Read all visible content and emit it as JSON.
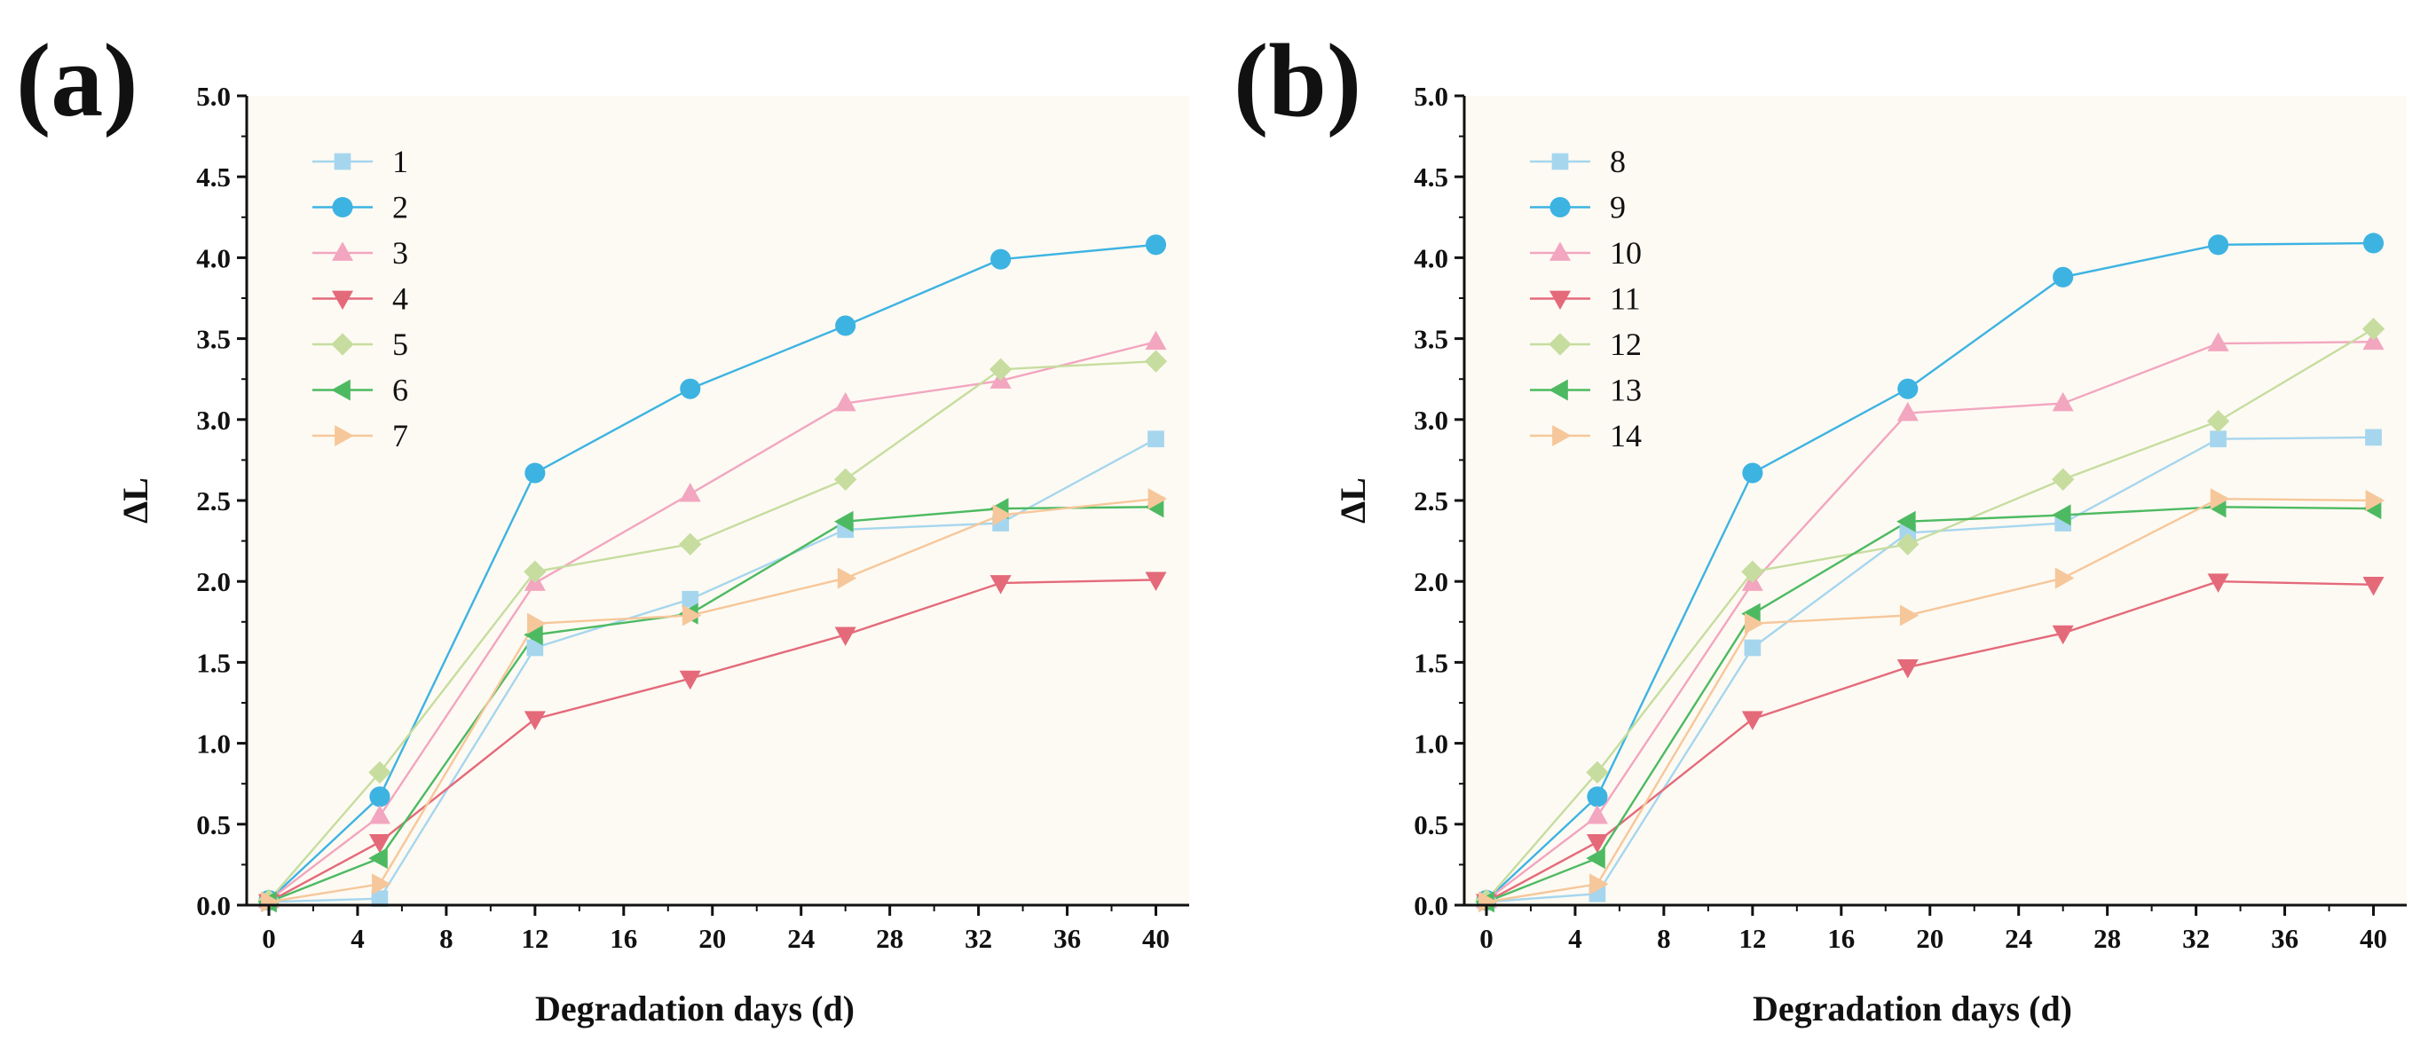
{
  "colors": {
    "plot_bg": "#fdfaf3",
    "axis": "#111111",
    "series": [
      "#a6d6ee",
      "#3db3e2",
      "#f2a6c0",
      "#e46a7a",
      "#c6dd9f",
      "#4dba62",
      "#f6c79a"
    ]
  },
  "chart_data": [
    {
      "type": "line",
      "panel_label": "(a)",
      "xlabel": "Degradation days (d)",
      "ylabel": "ΔL",
      "xlim": [
        -1,
        41.5
      ],
      "ylim": [
        0,
        5.0
      ],
      "xticks": [
        "0",
        "4",
        "8",
        "12",
        "16",
        "20",
        "24",
        "28",
        "32",
        "36",
        "40"
      ],
      "yticks": [
        "0.0",
        "0.5",
        "1.0",
        "1.5",
        "2.0",
        "2.5",
        "3.0",
        "3.5",
        "4.0",
        "4.5",
        "5.0"
      ],
      "legend_position": "top-left",
      "x": [
        0,
        5,
        12,
        19,
        26,
        33,
        40
      ],
      "series": [
        {
          "name": "1",
          "marker": "square",
          "values": [
            0.02,
            0.04,
            1.59,
            1.89,
            2.32,
            2.36,
            2.88
          ]
        },
        {
          "name": "2",
          "marker": "circle",
          "values": [
            0.03,
            0.67,
            2.67,
            3.19,
            3.58,
            3.99,
            4.08
          ]
        },
        {
          "name": "3",
          "marker": "triangle-up",
          "values": [
            0.03,
            0.55,
            1.99,
            2.54,
            3.1,
            3.24,
            3.48
          ]
        },
        {
          "name": "4",
          "marker": "triangle-down",
          "values": [
            0.02,
            0.39,
            1.15,
            1.4,
            1.67,
            1.99,
            2.01
          ]
        },
        {
          "name": "5",
          "marker": "diamond",
          "values": [
            0.03,
            0.82,
            2.06,
            2.23,
            2.63,
            3.31,
            3.36
          ]
        },
        {
          "name": "6",
          "marker": "triangle-left",
          "values": [
            0.02,
            0.29,
            1.67,
            1.8,
            2.37,
            2.45,
            2.46
          ]
        },
        {
          "name": "7",
          "marker": "triangle-right",
          "values": [
            0.02,
            0.13,
            1.74,
            1.79,
            2.02,
            2.41,
            2.51
          ]
        }
      ]
    },
    {
      "type": "line",
      "panel_label": "(b)",
      "xlabel": "Degradation days (d)",
      "ylabel": "ΔL",
      "xlim": [
        -1,
        41.5
      ],
      "ylim": [
        0,
        5.0
      ],
      "xticks": [
        "0",
        "4",
        "8",
        "12",
        "16",
        "20",
        "24",
        "28",
        "32",
        "36",
        "40"
      ],
      "yticks": [
        "0.0",
        "0.5",
        "1.0",
        "1.5",
        "2.0",
        "2.5",
        "3.0",
        "3.5",
        "4.0",
        "4.5",
        "5.0"
      ],
      "legend_position": "top-left",
      "x": [
        0,
        5,
        12,
        19,
        26,
        33,
        40
      ],
      "series": [
        {
          "name": "8",
          "marker": "square",
          "values": [
            0.02,
            0.07,
            1.59,
            2.3,
            2.36,
            2.88,
            2.89
          ]
        },
        {
          "name": "9",
          "marker": "circle",
          "values": [
            0.03,
            0.67,
            2.67,
            3.19,
            3.88,
            4.08,
            4.09
          ]
        },
        {
          "name": "10",
          "marker": "triangle-up",
          "values": [
            0.03,
            0.55,
            1.99,
            3.04,
            3.1,
            3.47,
            3.48
          ]
        },
        {
          "name": "11",
          "marker": "triangle-down",
          "values": [
            0.02,
            0.39,
            1.15,
            1.47,
            1.68,
            2.0,
            1.98
          ]
        },
        {
          "name": "12",
          "marker": "diamond",
          "values": [
            0.03,
            0.82,
            2.06,
            2.23,
            2.63,
            2.99,
            3.56
          ]
        },
        {
          "name": "13",
          "marker": "triangle-left",
          "values": [
            0.02,
            0.29,
            1.8,
            2.37,
            2.41,
            2.46,
            2.45
          ]
        },
        {
          "name": "14",
          "marker": "triangle-right",
          "values": [
            0.02,
            0.13,
            1.74,
            1.79,
            2.02,
            2.51,
            2.5
          ]
        }
      ]
    }
  ]
}
